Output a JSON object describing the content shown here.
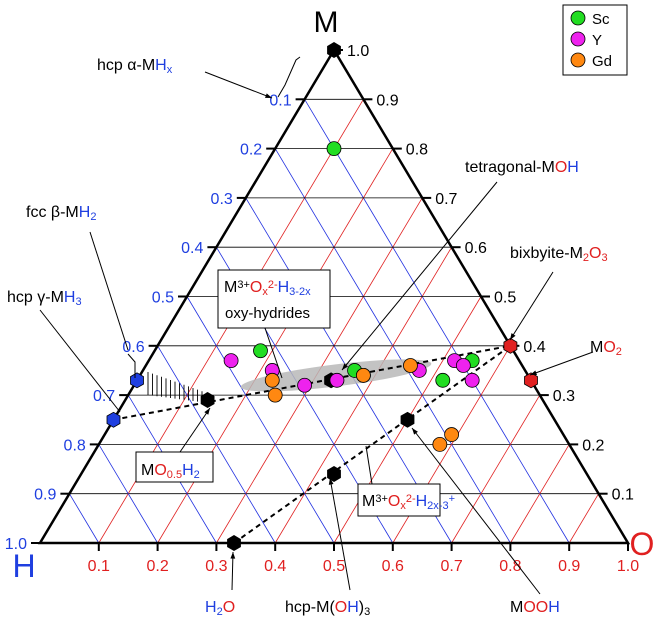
{
  "chart_data": {
    "type": "scatter",
    "subtype": "ternary",
    "vertex_labels": {
      "top": "M",
      "left": "H",
      "right": "O"
    },
    "vertex_label_colors": {
      "M": "#000000",
      "H": "#1f3fe0",
      "O": "#e02020"
    },
    "axis_ticks": {
      "M_left_side": [
        "0.1",
        "0.2",
        "0.3",
        "0.4",
        "0.5",
        "0.6",
        "0.7",
        "0.8",
        "0.9",
        "1.0"
      ],
      "M_right_side": [
        "1.0",
        "0.9",
        "0.8",
        "0.7",
        "0.6",
        "0.5",
        "0.4",
        "0.3",
        "0.2",
        "0.1"
      ],
      "O_bottom": [
        "0.1",
        "0.2",
        "0.3",
        "0.4",
        "0.5",
        "0.6",
        "0.7",
        "0.8",
        "0.9",
        "1.0"
      ]
    },
    "grid_colors": {
      "H_lines": "#2030e0",
      "O_lines": "#e02020",
      "M_lines": "#000000"
    },
    "legend": {
      "placement": "top-right",
      "entries": [
        {
          "label": "Sc",
          "color": "#22dd22"
        },
        {
          "label": "Y",
          "color": "#ee22ee"
        },
        {
          "label": "Gd",
          "color": "#ff8811"
        }
      ]
    },
    "series": [
      {
        "name": "Sc",
        "color": "#22dd22",
        "points": [
          {
            "M": 0.8,
            "O": 0.1
          },
          {
            "M": 0.39,
            "O": 0.18
          },
          {
            "M": 0.35,
            "O": 0.36
          },
          {
            "M": 0.37,
            "O": 0.55
          },
          {
            "M": 0.33,
            "O": 0.52
          }
        ]
      },
      {
        "name": "Y",
        "color": "#ee22ee",
        "points": [
          {
            "M": 0.37,
            "O": 0.14
          },
          {
            "M": 0.35,
            "O": 0.22
          },
          {
            "M": 0.32,
            "O": 0.29
          },
          {
            "M": 0.33,
            "O": 0.34
          },
          {
            "M": 0.34,
            "O": 0.38
          },
          {
            "M": 0.35,
            "O": 0.47
          },
          {
            "M": 0.37,
            "O": 0.52
          },
          {
            "M": 0.36,
            "O": 0.54
          },
          {
            "M": 0.33,
            "O": 0.57
          }
        ]
      },
      {
        "name": "Gd",
        "color": "#ff8811",
        "points": [
          {
            "M": 0.33,
            "O": 0.23
          },
          {
            "M": 0.3,
            "O": 0.25
          },
          {
            "M": 0.34,
            "O": 0.38
          },
          {
            "M": 0.36,
            "O": 0.45
          },
          {
            "M": 0.22,
            "O": 0.59
          },
          {
            "M": 0.2,
            "O": 0.58
          }
        ]
      }
    ],
    "reference_points": [
      {
        "name": "M",
        "M": 1.0,
        "O": 0.0,
        "color": "#000000"
      },
      {
        "name": "MH3",
        "M": 0.25,
        "O": 0.0,
        "color": "#1f3fe0"
      },
      {
        "name": "MH2",
        "M": 0.33,
        "O": 0.0,
        "color": "#1f3fe0"
      },
      {
        "name": "MO0.5H2",
        "M": 0.29,
        "O": 0.14,
        "color": "#000000"
      },
      {
        "name": "MOH",
        "M": 0.33,
        "O": 0.33,
        "color": "#000000"
      },
      {
        "name": "M2O3",
        "M": 0.4,
        "O": 0.6,
        "color": "#e02020"
      },
      {
        "name": "MO2",
        "M": 0.33,
        "O": 0.67,
        "color": "#e02020"
      },
      {
        "name": "MOOH",
        "M": 0.25,
        "O": 0.5,
        "color": "#000000"
      },
      {
        "name": "M(OH)3",
        "M": 0.14,
        "O": 0.43,
        "color": "#000000"
      },
      {
        "name": "H2O",
        "M": 0.0,
        "O": 0.33,
        "color": "#000000"
      }
    ],
    "dashed_lines": [
      {
        "from": "MH3",
        "to": "M2O3"
      },
      {
        "from": "H2O",
        "to": "M2O3"
      }
    ],
    "annotations": {
      "hcp_alpha": [
        "hcp ",
        "α",
        "-M",
        "H",
        "x"
      ],
      "fcc_beta": [
        "fcc ",
        "β",
        "-M",
        "H",
        "2"
      ],
      "hcp_gamma": [
        "hcp ",
        "γ",
        "-M",
        "H",
        "3"
      ],
      "tetragonal": [
        "tetragonal-M",
        "O",
        "H"
      ],
      "bixbyite": [
        "bixbyite-M",
        "2",
        "O",
        "3"
      ],
      "mo2": [
        "M",
        "O",
        "2"
      ],
      "oxyhydrides_formula": [
        "M",
        "3+",
        "O",
        "x",
        "2-",
        "H",
        "3-2x"
      ],
      "oxyhydrides_text": "oxy-hydrides",
      "mo05h2": [
        "M",
        "O",
        "0.5",
        "H",
        "2"
      ],
      "hydroxide_formula": [
        "M",
        "3+",
        "O",
        "x",
        "2-",
        "H",
        "2x-3",
        "+"
      ],
      "h2o": [
        "H",
        "2",
        "O"
      ],
      "hcp_moh3": [
        "hcp-M(",
        "O",
        "H",
        ")",
        "3"
      ],
      "mooh": [
        "M",
        "O",
        "O",
        "H"
      ]
    }
  }
}
